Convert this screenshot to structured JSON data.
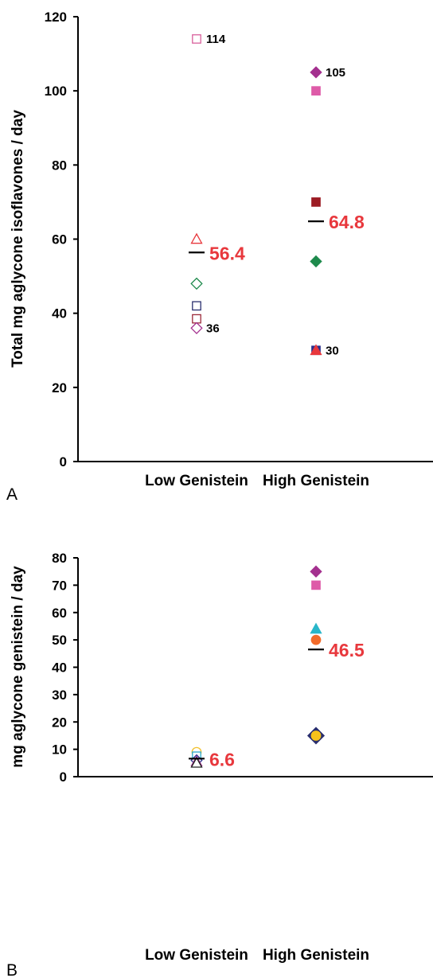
{
  "chart_data": [
    {
      "panel_label": "A",
      "type": "scatter",
      "ylabel": "Total mg aglycone isoflavones / day",
      "ylim": [
        0,
        120
      ],
      "yticks": [
        0,
        20,
        40,
        60,
        80,
        100,
        120
      ],
      "categories": [
        "Low Genistein",
        "High Genistein"
      ],
      "mean_color": "#e8383d",
      "points": [
        {
          "cat": 0,
          "y": 114,
          "marker": "square",
          "fill": "none",
          "stroke": "#d9609c",
          "label": "114"
        },
        {
          "cat": 0,
          "y": 60,
          "marker": "triangle",
          "fill": "none",
          "stroke": "#e8383d"
        },
        {
          "cat": 0,
          "y": 48,
          "marker": "diamond",
          "fill": "none",
          "stroke": "#1e8a4c"
        },
        {
          "cat": 0,
          "y": 42,
          "marker": "square",
          "fill": "none",
          "stroke": "#2a2f6e"
        },
        {
          "cat": 0,
          "y": 38.5,
          "marker": "square",
          "fill": "none",
          "stroke": "#9c2a3a"
        },
        {
          "cat": 0,
          "y": 36,
          "marker": "diamond",
          "fill": "none",
          "stroke": "#a4308f",
          "label": "36"
        },
        {
          "cat": 1,
          "y": 105,
          "marker": "diamond",
          "fill": "#a4308f",
          "stroke": "#a4308f",
          "label": "105"
        },
        {
          "cat": 1,
          "y": 100,
          "marker": "square",
          "fill": "#de5ba8",
          "stroke": "#de5ba8"
        },
        {
          "cat": 1,
          "y": 70,
          "marker": "square",
          "fill": "#9c1c24",
          "stroke": "#9c1c24"
        },
        {
          "cat": 1,
          "y": 54,
          "marker": "diamond",
          "fill": "#1e8a4c",
          "stroke": "#1e8a4c"
        },
        {
          "cat": 1,
          "y": 30,
          "marker": "square",
          "fill": "#2a2f8e",
          "stroke": "#2a2f8e",
          "label": "30"
        },
        {
          "cat": 1,
          "y": 30,
          "marker": "triangle",
          "fill": "#e8383d",
          "stroke": "#e8383d"
        }
      ],
      "means": [
        {
          "cat": 0,
          "value": 56.4,
          "label": "56.4"
        },
        {
          "cat": 1,
          "value": 64.8,
          "label": "64.8"
        }
      ]
    },
    {
      "panel_label": "B",
      "type": "scatter",
      "ylabel": "mg aglycone genistein / day",
      "ylim": [
        0,
        80
      ],
      "yticks": [
        0,
        10,
        20,
        30,
        40,
        50,
        60,
        70,
        80
      ],
      "categories": [
        "Low Genistein",
        "High Genistein"
      ],
      "mean_color": "#e8383d",
      "points": [
        {
          "cat": 0,
          "y": 9,
          "marker": "circle",
          "fill": "none",
          "stroke": "#f2c12e"
        },
        {
          "cat": 0,
          "y": 7.5,
          "marker": "square",
          "fill": "none",
          "stroke": "#29a9c9"
        },
        {
          "cat": 0,
          "y": 6,
          "marker": "diamond",
          "fill": "none",
          "stroke": "#2a2f8e"
        },
        {
          "cat": 0,
          "y": 5.5,
          "marker": "triangle",
          "fill": "none",
          "stroke": "#a4308f"
        },
        {
          "cat": 0,
          "y": 5,
          "marker": "triangle",
          "fill": "none",
          "stroke": "#222222"
        },
        {
          "cat": 1,
          "y": 75,
          "marker": "diamond",
          "fill": "#a4308f",
          "stroke": "#a4308f"
        },
        {
          "cat": 1,
          "y": 70,
          "marker": "square",
          "fill": "#de5ba8",
          "stroke": "#de5ba8"
        },
        {
          "cat": 1,
          "y": 54,
          "marker": "triangle",
          "fill": "#29b6c9",
          "stroke": "#29b6c9"
        },
        {
          "cat": 1,
          "y": 50,
          "marker": "circle",
          "fill": "#f26b2a",
          "stroke": "#f26b2a"
        },
        {
          "cat": 1,
          "y": 15,
          "marker": "diamond",
          "fill": "#2a2f6e",
          "stroke": "#2a2f6e",
          "size": 1.5
        },
        {
          "cat": 1,
          "y": 15,
          "marker": "circle",
          "fill": "#f7c21a",
          "stroke": "#f7c21a"
        }
      ],
      "means": [
        {
          "cat": 0,
          "value": 6.6,
          "label": "6.6"
        },
        {
          "cat": 1,
          "value": 46.5,
          "label": "46.5"
        }
      ]
    }
  ]
}
